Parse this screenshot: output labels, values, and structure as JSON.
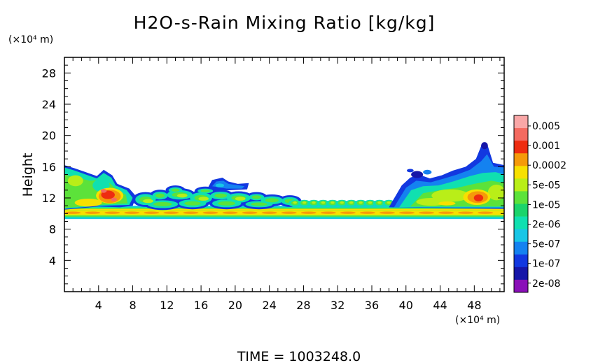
{
  "chart_data": {
    "type": "heatmap",
    "title": "H2O-s-Rain Mixing Ratio [kg/kg]",
    "xlabel": "",
    "ylabel": "Height",
    "x_unit": "(×10⁴ m)",
    "y_unit": "(×10⁴ m)",
    "xlim": [
      0,
      51.5
    ],
    "ylim": [
      0,
      30
    ],
    "xticks": [
      "4",
      "8",
      "12",
      "16",
      "20",
      "24",
      "28",
      "32",
      "36",
      "40",
      "44",
      "48"
    ],
    "yticks": [
      "4",
      "8",
      "12",
      "16",
      "20",
      "24",
      "28"
    ],
    "xtick_values": [
      4,
      8,
      12,
      16,
      20,
      24,
      28,
      32,
      36,
      40,
      44,
      48
    ],
    "ytick_values": [
      4,
      8,
      12,
      16,
      20,
      24,
      28
    ],
    "colorbar": {
      "levels": [
        "0.005",
        "0.001",
        "0.0002",
        "5e-05",
        "1e-05",
        "2e-06",
        "5e-07",
        "1e-07",
        "2e-08"
      ],
      "colors": [
        "#f9a7a7",
        "#f46a60",
        "#ee2c10",
        "#f59a0a",
        "#f7e000",
        "#b9ee18",
        "#5ce23a",
        "#1bd46b",
        "#10e0b0",
        "#18c6e6",
        "#1482f0",
        "#1238e0",
        "#1616a8",
        "#8a10b8"
      ]
    },
    "regions": [
      {
        "desc": "continuous layer",
        "x": [
          0,
          50
        ],
        "y": [
          9.4,
          10.9
        ],
        "level": "5e-05"
      },
      {
        "desc": "left cloud",
        "x": [
          0,
          8
        ],
        "y": [
          10.5,
          16.0
        ],
        "level": "5e-05"
      },
      {
        "desc": "left core",
        "x": [
          3.5,
          7.0
        ],
        "y": [
          11.3,
          13.2
        ],
        "level": "0.0002"
      },
      {
        "desc": "mid patches",
        "x": [
          8,
          27
        ],
        "y": [
          10.5,
          13.3
        ],
        "level": "1e-05"
      },
      {
        "desc": "isolated blob",
        "x": [
          16.7,
          21.7
        ],
        "y": [
          13.0,
          14.5
        ],
        "level": "1e-07"
      },
      {
        "desc": "right cloud",
        "x": [
          38,
          51
        ],
        "y": [
          10.5,
          19.0
        ],
        "level": "5e-05"
      },
      {
        "desc": "right core",
        "x": [
          46.5,
          49.5
        ],
        "y": [
          11.3,
          13.0
        ],
        "level": "0.0002"
      }
    ]
  },
  "footer": {
    "time_label": "TIME  =  1003248.0"
  }
}
